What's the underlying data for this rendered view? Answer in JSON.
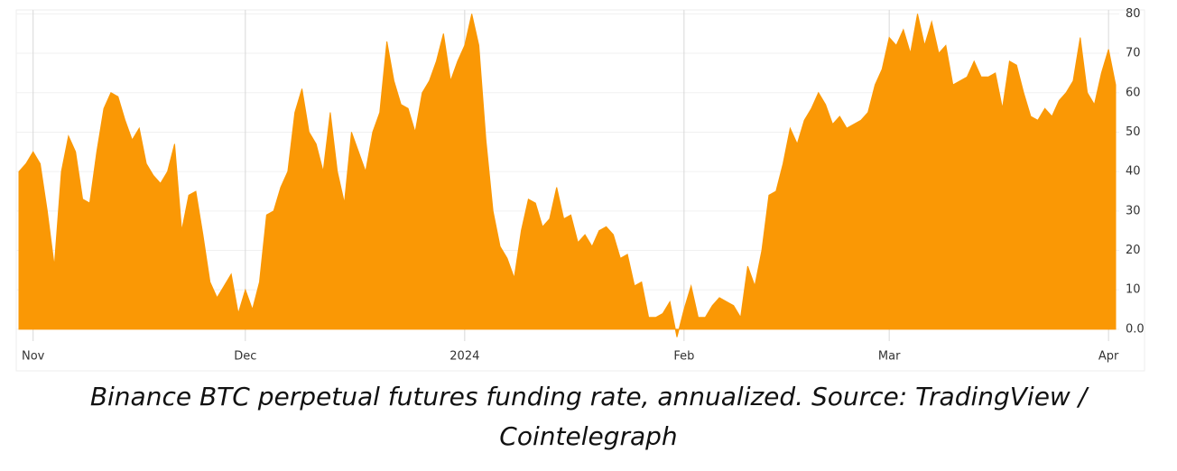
{
  "chart_data": {
    "type": "area",
    "caption": "Binance BTC perpetual futures funding rate, annualized. Source: TradingView / Cointelegraph",
    "categories": [
      null,
      null,
      "Nov",
      null,
      null,
      null,
      null,
      null,
      null,
      null,
      null,
      null,
      null,
      null,
      null,
      null,
      null,
      null,
      null,
      null,
      null,
      null,
      null,
      null,
      null,
      null,
      null,
      null,
      null,
      null,
      null,
      null,
      "Dec",
      null,
      null,
      null,
      null,
      null,
      null,
      null,
      null,
      null,
      null,
      null,
      null,
      null,
      null,
      null,
      null,
      null,
      null,
      null,
      null,
      null,
      null,
      null,
      null,
      null,
      null,
      null,
      null,
      null,
      null,
      "2024",
      null,
      null,
      null,
      null,
      null,
      null,
      null,
      null,
      null,
      null,
      null,
      null,
      null,
      null,
      null,
      null,
      null,
      null,
      null,
      null,
      null,
      null,
      null,
      null,
      null,
      null,
      null,
      null,
      null,
      null,
      "Feb",
      null,
      null,
      null,
      null,
      null,
      null,
      null,
      null,
      null,
      null,
      null,
      null,
      null,
      null,
      null,
      null,
      null,
      null,
      null,
      null,
      null,
      null,
      null,
      null,
      null,
      null,
      null,
      null,
      "Mar",
      null,
      null,
      null,
      null,
      null,
      null,
      null,
      null,
      null,
      null,
      null,
      null,
      null,
      null,
      null,
      null,
      null,
      null,
      null,
      null,
      null,
      null,
      null,
      null,
      null,
      null,
      null,
      null,
      null,
      null,
      "Apr",
      null
    ],
    "values": [
      40,
      42,
      45,
      42,
      30,
      16,
      40,
      49,
      45,
      33,
      32,
      45,
      56,
      60,
      59,
      53,
      48,
      51,
      42,
      39,
      37,
      40,
      47,
      25,
      34,
      35,
      24,
      12,
      8,
      11,
      14,
      4,
      10,
      5,
      12,
      29,
      30,
      36,
      40,
      55,
      61,
      50,
      47,
      40,
      55,
      40,
      32,
      50,
      45,
      40,
      50,
      55,
      73,
      63,
      57,
      56,
      50,
      60,
      63,
      68,
      75,
      63,
      68,
      72,
      80,
      72,
      48,
      30,
      21,
      18,
      13,
      25,
      33,
      32,
      26,
      28,
      36,
      28,
      29,
      22,
      24,
      21,
      25,
      26,
      24,
      18,
      19,
      11,
      12,
      3,
      3,
      4,
      7,
      -2,
      5,
      11,
      3,
      3,
      6,
      8,
      7,
      6,
      3,
      16,
      11,
      20,
      34,
      35,
      42,
      51,
      47,
      53,
      56,
      60,
      57,
      52,
      54,
      51,
      52,
      53,
      55,
      62,
      66,
      74,
      72,
      76,
      70,
      80,
      72,
      78,
      70,
      72,
      62,
      63,
      64,
      68,
      64,
      64,
      65,
      56,
      68,
      67,
      60,
      54,
      53,
      56,
      54,
      58,
      60,
      63,
      74,
      60,
      57,
      65,
      71,
      62
    ],
    "color": "#fa9805",
    "ylim": [
      -3,
      81
    ],
    "yticks": [
      {
        "value": 0,
        "label": "0.0"
      },
      10,
      20,
      30,
      40,
      50,
      60,
      70,
      80
    ],
    "grid": true
  }
}
